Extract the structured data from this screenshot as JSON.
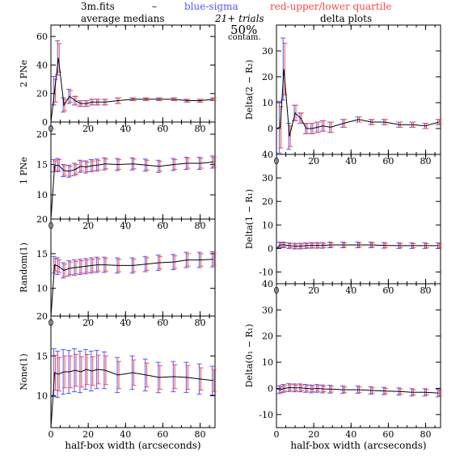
{
  "header": {
    "file": "3m.fits",
    "dash": "–",
    "blue_note": "blue-sigma",
    "red_note": "red-upper/lower quartile",
    "left_title": "average medians",
    "right_title": "delta plots",
    "trials": "21+ trials",
    "contam_pct": "50%",
    "contam_label": "contam."
  },
  "colors": {
    "line": "#000000",
    "sigma": "#5555ff",
    "quartile": "#ff4444",
    "axis": "#000000"
  },
  "chart_data": [
    {
      "type": "line",
      "panel": "left-1",
      "xlabel": "",
      "ylabel": "2 PNe",
      "xlim": [
        0,
        88
      ],
      "ylim": [
        0,
        68
      ],
      "xticks": [
        0,
        20,
        40,
        60,
        80
      ],
      "yticks": [
        0,
        20,
        40,
        60
      ],
      "series": [
        {
          "x": [
            2,
            4,
            7,
            10,
            13,
            16,
            19,
            22,
            25,
            29,
            36,
            44,
            51,
            58,
            66,
            73,
            80,
            87
          ],
          "y": [
            22,
            45,
            12,
            18,
            15,
            13,
            13,
            14,
            14,
            14,
            15,
            16,
            16,
            16,
            16,
            15,
            15,
            16
          ],
          "sigma_err": [
            10,
            12,
            5,
            5,
            3,
            2,
            2,
            2,
            2,
            2,
            2,
            1,
            1,
            1,
            1,
            1,
            1,
            1
          ],
          "quartile_err": [
            8,
            10,
            4,
            4,
            3,
            2,
            2,
            2,
            2,
            2,
            2,
            1,
            1,
            1,
            1,
            1,
            1,
            1
          ]
        }
      ]
    },
    {
      "type": "line",
      "panel": "left-2",
      "xlabel": "",
      "ylabel": "1 PNe",
      "xlim": [
        0,
        88
      ],
      "ylim": [
        6,
        22
      ],
      "xticks": [
        0,
        20,
        40,
        60,
        80
      ],
      "yticks": [
        10,
        15,
        20
      ],
      "series": [
        {
          "x": [
            2,
            4,
            7,
            10,
            13,
            16,
            19,
            22,
            25,
            29,
            36,
            44,
            51,
            58,
            66,
            73,
            80,
            87
          ],
          "y": [
            14.8,
            14.9,
            14.0,
            13.9,
            14.2,
            14.7,
            14.6,
            14.8,
            14.9,
            15.1,
            15.0,
            15.1,
            14.9,
            14.7,
            15.0,
            15.2,
            15.2,
            15.4
          ],
          "sigma_err": [
            1.0,
            1.1,
            1.0,
            1.0,
            1.0,
            1.0,
            1.0,
            1.0,
            1.0,
            1.0,
            1.0,
            1.0,
            1.0,
            1.0,
            1.0,
            1.0,
            1.0,
            1.0
          ],
          "quartile_err": [
            0.8,
            0.9,
            0.8,
            0.8,
            0.8,
            0.8,
            0.8,
            0.8,
            0.8,
            0.8,
            0.8,
            0.8,
            0.8,
            0.8,
            0.8,
            0.8,
            0.8,
            0.8
          ]
        }
      ]
    },
    {
      "type": "line",
      "panel": "left-3",
      "xlabel": "",
      "ylabel": "Random(1)",
      "xlim": [
        0,
        88
      ],
      "ylim": [
        6,
        20
      ],
      "xticks": [
        0,
        20,
        40,
        60,
        80
      ],
      "yticks": [
        10,
        15,
        20
      ],
      "series": [
        {
          "x": [
            2,
            4,
            7,
            10,
            13,
            16,
            19,
            22,
            25,
            29,
            36,
            44,
            51,
            58,
            66,
            73,
            80,
            87
          ],
          "y": [
            13.4,
            13.2,
            12.6,
            12.9,
            13.0,
            13.1,
            13.2,
            13.3,
            13.4,
            13.4,
            13.3,
            13.3,
            13.5,
            13.7,
            13.8,
            14.1,
            14.1,
            14.2
          ],
          "sigma_err": [
            1.2,
            1.2,
            1.1,
            1.1,
            1.1,
            1.1,
            1.1,
            1.1,
            1.1,
            1.1,
            1.1,
            1.1,
            1.1,
            1.1,
            1.1,
            1.1,
            1.1,
            1.1
          ],
          "quartile_err": [
            0.9,
            0.9,
            0.9,
            0.9,
            0.9,
            0.9,
            0.9,
            0.9,
            0.9,
            0.9,
            0.9,
            0.9,
            0.9,
            0.9,
            0.9,
            0.9,
            0.9,
            0.9
          ]
        }
      ]
    },
    {
      "type": "line",
      "panel": "left-4",
      "xlabel": "half-box width (arcseconds)",
      "ylabel": "None(1)",
      "xlim": [
        0,
        88
      ],
      "ylim": [
        6,
        20
      ],
      "xticks": [
        0,
        20,
        40,
        60,
        80
      ],
      "yticks": [
        10,
        15,
        20
      ],
      "series": [
        {
          "x": [
            2,
            4,
            7,
            10,
            13,
            16,
            19,
            22,
            25,
            29,
            36,
            44,
            51,
            58,
            66,
            73,
            80,
            87
          ],
          "y": [
            12.9,
            12.7,
            13.0,
            13.0,
            13.2,
            13.0,
            13.3,
            13.1,
            13.3,
            13.2,
            12.6,
            12.9,
            12.6,
            12.3,
            12.4,
            12.3,
            12.1,
            11.9
          ],
          "sigma_err": [
            3.0,
            2.9,
            2.8,
            2.7,
            2.7,
            2.6,
            2.5,
            2.5,
            2.4,
            2.3,
            2.2,
            2.1,
            2.0,
            1.9,
            1.9,
            1.9,
            1.9,
            1.8
          ],
          "quartile_err": [
            2.2,
            2.1,
            2.0,
            2.0,
            2.0,
            1.9,
            1.9,
            1.8,
            1.8,
            1.8,
            1.7,
            1.6,
            1.5,
            1.5,
            1.5,
            1.5,
            1.4,
            1.4
          ]
        }
      ]
    },
    {
      "type": "line",
      "panel": "right-1",
      "xlabel": "",
      "ylabel": "Delta(2 − R₂)",
      "xlim": [
        0,
        88
      ],
      "ylim": [
        -10,
        40
      ],
      "xticks": [
        0,
        20,
        40,
        60,
        80
      ],
      "yticks": [
        0,
        10,
        20,
        30
      ],
      "series": [
        {
          "x": [
            2,
            4,
            7,
            10,
            13,
            16,
            19,
            22,
            25,
            29,
            36,
            44,
            51,
            58,
            66,
            73,
            80,
            87
          ],
          "y": [
            0.5,
            23,
            -3,
            6,
            4,
            0,
            0,
            0.5,
            1,
            0.5,
            2,
            3.5,
            2.5,
            2.5,
            1.5,
            1.5,
            1,
            2.5
          ],
          "sigma_err": [
            10,
            12,
            5,
            3,
            2,
            2,
            2,
            2,
            2,
            2,
            1.5,
            1,
            1,
            1,
            1,
            1,
            1,
            1
          ],
          "quartile_err": [
            8,
            10,
            4,
            3,
            2,
            2,
            2,
            2,
            2,
            2,
            1.5,
            1,
            1,
            1,
            1,
            1,
            1,
            1
          ]
        }
      ]
    },
    {
      "type": "line",
      "panel": "right-2",
      "xlabel": "",
      "ylabel": "Delta(1 − R₁)",
      "xlim": [
        0,
        88
      ],
      "ylim": [
        -15,
        40
      ],
      "xticks": [
        0,
        20,
        40,
        60,
        80
      ],
      "yticks": [
        -10,
        0,
        10,
        20,
        30,
        40
      ],
      "series": [
        {
          "x": [
            2,
            4,
            7,
            10,
            13,
            16,
            19,
            22,
            25,
            29,
            36,
            44,
            51,
            58,
            66,
            73,
            80,
            87
          ],
          "y": [
            1.5,
            1.5,
            1.2,
            1.0,
            1.0,
            1.2,
            1.3,
            1.3,
            1.3,
            1.5,
            1.5,
            1.5,
            1.5,
            1.3,
            1.2,
            1.2,
            1.2,
            1.2
          ],
          "sigma_err": [
            1.2,
            1.2,
            1.2,
            1.2,
            1.2,
            1.2,
            1.2,
            1.2,
            1.2,
            1.2,
            1.2,
            1.2,
            1.2,
            1.2,
            1.2,
            1.2,
            1.2,
            1.2
          ],
          "quartile_err": [
            0.9,
            0.9,
            0.9,
            0.9,
            0.9,
            0.9,
            0.9,
            0.9,
            0.9,
            0.9,
            0.9,
            0.9,
            0.9,
            0.9,
            0.9,
            0.9,
            0.9,
            0.9
          ]
        }
      ]
    },
    {
      "type": "line",
      "panel": "right-3",
      "xlabel": "half-box width (arcseconds)",
      "ylabel": "Delta(0₁ − R₁)",
      "xlim": [
        0,
        88
      ],
      "ylim": [
        -15,
        40
      ],
      "xticks": [
        0,
        20,
        40,
        60,
        80
      ],
      "yticks": [
        -10,
        0,
        10,
        20,
        30,
        40
      ],
      "series": [
        {
          "x": [
            2,
            4,
            7,
            10,
            13,
            16,
            19,
            22,
            25,
            29,
            36,
            44,
            51,
            58,
            66,
            73,
            80,
            87
          ],
          "y": [
            -0.5,
            0,
            0.3,
            0.2,
            0.2,
            0.0,
            -0.2,
            0.0,
            -0.2,
            -0.3,
            -0.5,
            -0.5,
            -0.8,
            -1.0,
            -1.2,
            -1.5,
            -1.5,
            -1.8
          ],
          "sigma_err": [
            1.5,
            1.5,
            1.5,
            1.5,
            1.5,
            1.5,
            1.5,
            1.5,
            1.5,
            1.5,
            1.4,
            1.4,
            1.4,
            1.4,
            1.4,
            1.4,
            1.4,
            1.4
          ],
          "quartile_err": [
            1.1,
            1.1,
            1.1,
            1.1,
            1.1,
            1.1,
            1.1,
            1.1,
            1.1,
            1.1,
            1.0,
            1.0,
            1.0,
            1.0,
            1.0,
            1.0,
            1.0,
            1.0
          ]
        }
      ]
    }
  ]
}
